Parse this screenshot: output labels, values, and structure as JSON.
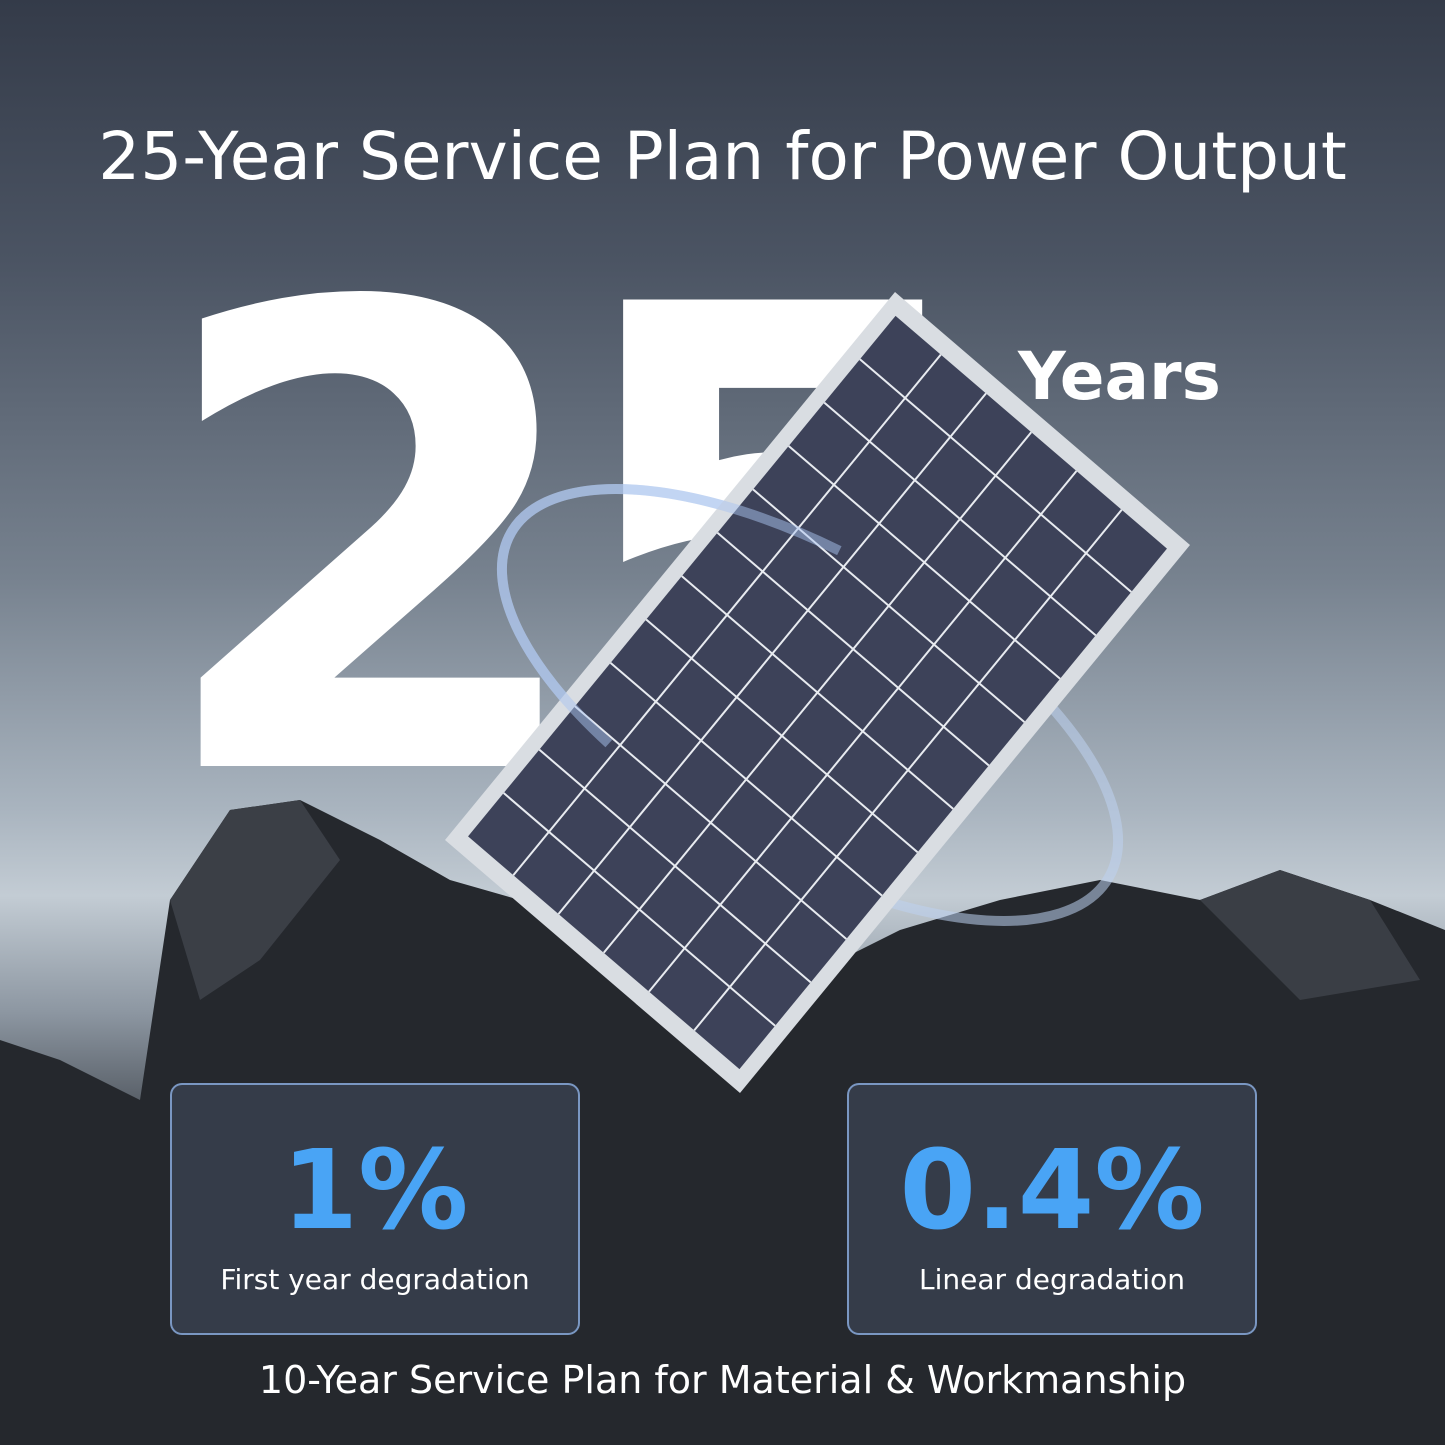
{
  "headline": "25-Year Service Plan for Power Output",
  "big_number": "25",
  "big_unit": "Years",
  "stats": [
    {
      "value": "1%",
      "label": "First year degradation"
    },
    {
      "value": "0.4%",
      "label": "Linear degradation"
    }
  ],
  "footer": "10-Year Service Plan for Material & Workmanship",
  "colors": {
    "accent": "#49a4f5",
    "card_border": "#8cafe1"
  }
}
